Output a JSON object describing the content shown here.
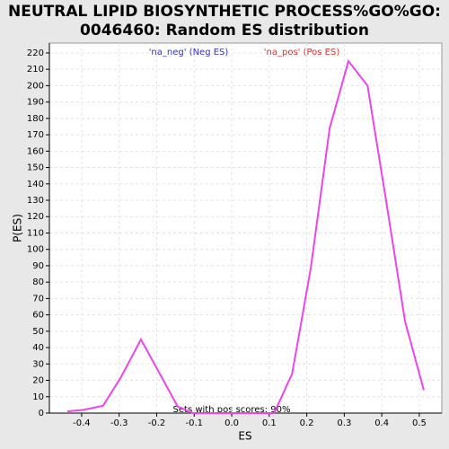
{
  "chart_data": {
    "type": "line",
    "title": [
      "NEUTRAL LIPID BIOSYNTHETIC PROCESS%GO%GO:",
      "0046460: Random ES distribution"
    ],
    "xlabel": "ES",
    "ylabel": "P(ES)",
    "annotation": "Sets with pos scores: 90%",
    "legend_labels": [
      {
        "text": "'na_neg' (Neg ES)",
        "color": "#3333cc"
      },
      {
        "text": "'na_pos' (Pos ES)",
        "color": "#dd3333"
      }
    ],
    "series": [
      {
        "name": "Random ES",
        "color": "#ee44ee",
        "x": [
          -0.438,
          -0.395,
          -0.343,
          -0.295,
          -0.242,
          -0.144,
          -0.103,
          0.113,
          0.161,
          0.211,
          0.261,
          0.311,
          0.362,
          0.412,
          0.462,
          0.512
        ],
        "values": [
          1,
          2,
          4.5,
          22,
          45,
          4,
          0,
          0,
          24,
          89,
          174,
          215,
          200,
          129,
          56,
          14
        ]
      }
    ],
    "xlim": [
      -0.486,
      0.56
    ],
    "ylim": [
      0,
      226
    ],
    "xticks": [
      -0.4,
      -0.3,
      -0.2,
      -0.1,
      {
        "value": 0,
        "label": "0.0"
      },
      0.1,
      0.2,
      0.3,
      0.4,
      0.5
    ],
    "yticks": [
      0,
      10,
      20,
      30,
      40,
      50,
      60,
      70,
      80,
      90,
      100,
      110,
      120,
      130,
      140,
      150,
      160,
      170,
      180,
      190,
      200,
      210,
      220
    ],
    "grid": true
  }
}
